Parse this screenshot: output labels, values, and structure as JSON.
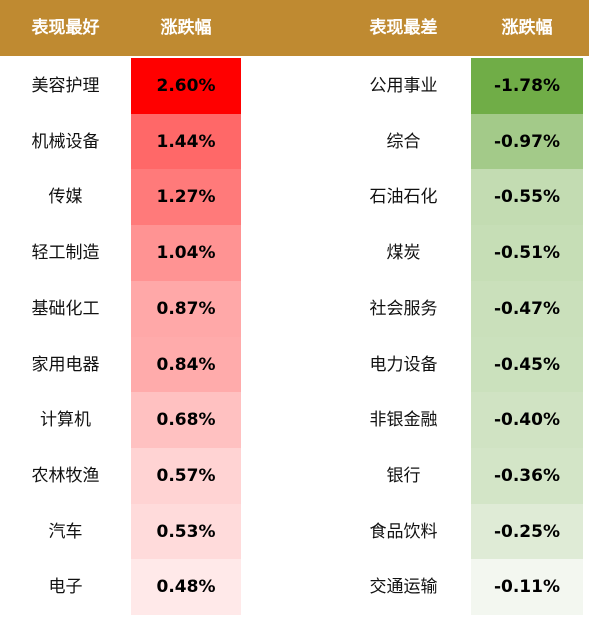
{
  "header": {
    "best_title": "表现最好",
    "best_change": "涨跌幅",
    "worst_title": "表现最差",
    "worst_change": "涨跌幅"
  },
  "colors": {
    "header_bg": "#bf8a31",
    "header_text": "#ffffff",
    "positive_strong": "#ff0000",
    "positive_weak": "#ffe9e9",
    "negative_strong": "#70ad47",
    "negative_weak": "#f3f7f0"
  },
  "chart_data": {
    "type": "table",
    "columns": [
      "表现最好",
      "涨跌幅",
      "表现最差",
      "涨跌幅"
    ],
    "best": [
      {
        "name": "美容护理",
        "change": "2.60%",
        "value": 2.6
      },
      {
        "name": "机械设备",
        "change": "1.44%",
        "value": 1.44
      },
      {
        "name": "传媒",
        "change": "1.27%",
        "value": 1.27
      },
      {
        "name": "轻工制造",
        "change": "1.04%",
        "value": 1.04
      },
      {
        "name": "基础化工",
        "change": "0.87%",
        "value": 0.87
      },
      {
        "name": "家用电器",
        "change": "0.84%",
        "value": 0.84
      },
      {
        "name": "计算机",
        "change": "0.68%",
        "value": 0.68
      },
      {
        "name": "农林牧渔",
        "change": "0.57%",
        "value": 0.57
      },
      {
        "name": "汽车",
        "change": "0.53%",
        "value": 0.53
      },
      {
        "name": "电子",
        "change": "0.48%",
        "value": 0.48
      }
    ],
    "worst": [
      {
        "name": "公用事业",
        "change": "-1.78%",
        "value": -1.78
      },
      {
        "name": "综合",
        "change": "-0.97%",
        "value": -0.97
      },
      {
        "name": "石油石化",
        "change": "-0.55%",
        "value": -0.55
      },
      {
        "name": "煤炭",
        "change": "-0.51%",
        "value": -0.51
      },
      {
        "name": "社会服务",
        "change": "-0.47%",
        "value": -0.47
      },
      {
        "name": "电力设备",
        "change": "-0.45%",
        "value": -0.45
      },
      {
        "name": "非银金融",
        "change": "-0.40%",
        "value": -0.4
      },
      {
        "name": "银行",
        "change": "-0.36%",
        "value": -0.36
      },
      {
        "name": "食品饮料",
        "change": "-0.25%",
        "value": -0.25
      },
      {
        "name": "交通运输",
        "change": "-0.11%",
        "value": -0.11
      }
    ]
  }
}
